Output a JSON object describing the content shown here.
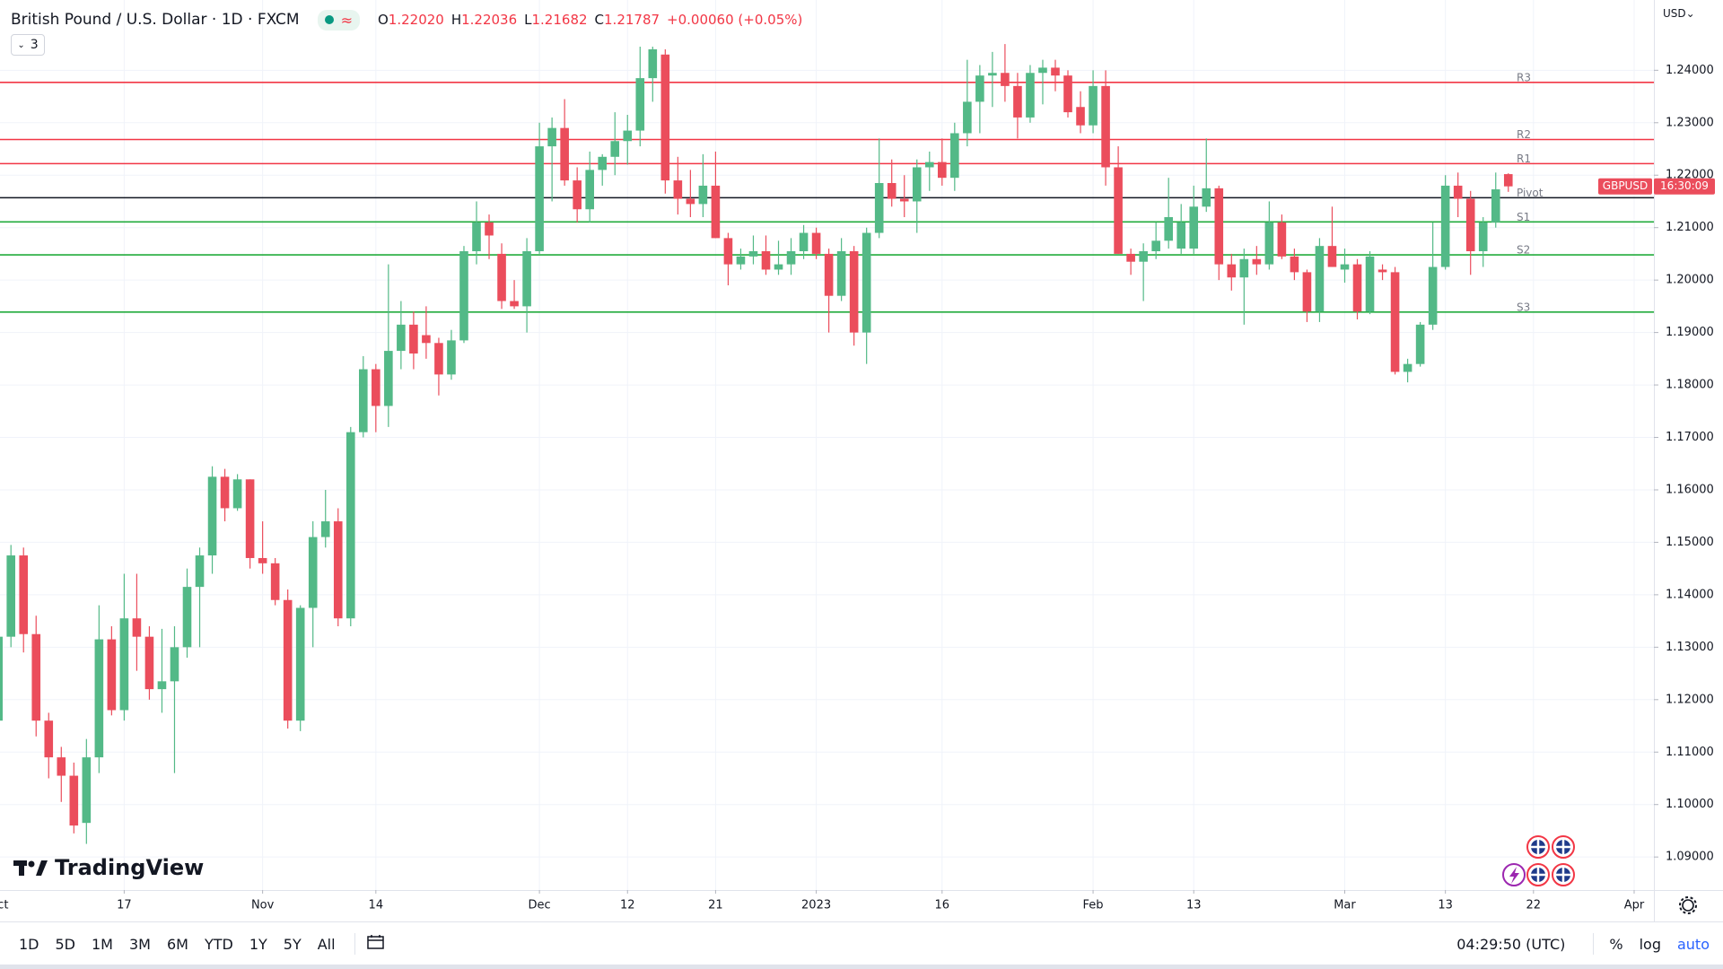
{
  "header": {
    "title": "British Pound / U.S. Dollar · 1D · FXCM",
    "ohlc": [
      {
        "key": "O",
        "value": "1.22020"
      },
      {
        "key": "H",
        "value": "1.22036"
      },
      {
        "key": "L",
        "value": "1.21682"
      },
      {
        "key": "C",
        "value": "1.21787"
      }
    ],
    "change": "+0.00060 (+0.05%)",
    "indicators": "3",
    "currency": "USD⌄",
    "brand": "TradingView"
  },
  "chart_data": {
    "type": "candlestick",
    "up_color": "#53b987",
    "down_color": "#eb4d5c",
    "grid": true,
    "xlim": [
      0.13,
      131.57
    ],
    "xticks": [
      {
        "value": 0,
        "label": "Oct"
      },
      {
        "value": 10,
        "label": "17"
      },
      {
        "value": 21,
        "label": "Nov"
      },
      {
        "value": 30,
        "label": "14"
      },
      {
        "value": 43,
        "label": "Dec"
      },
      {
        "value": 50,
        "label": "12"
      },
      {
        "value": 57,
        "label": "21"
      },
      {
        "value": 65,
        "label": "2023"
      },
      {
        "value": 75,
        "label": "16"
      },
      {
        "value": 87,
        "label": "Feb"
      },
      {
        "value": 95,
        "label": "13"
      },
      {
        "value": 107,
        "label": "Mar"
      },
      {
        "value": 115,
        "label": "13"
      },
      {
        "value": 122,
        "label": "22"
      },
      {
        "value": 130,
        "label": "Apr"
      }
    ],
    "ylim": [
      1.0837,
      1.2534
    ],
    "yticks": [
      {
        "value": 1.09,
        "label": "1.09000"
      },
      {
        "value": 1.1,
        "label": "1.10000"
      },
      {
        "value": 1.11,
        "label": "1.11000"
      },
      {
        "value": 1.12,
        "label": "1.12000"
      },
      {
        "value": 1.13,
        "label": "1.13000"
      },
      {
        "value": 1.14,
        "label": "1.14000"
      },
      {
        "value": 1.15,
        "label": "1.15000"
      },
      {
        "value": 1.16,
        "label": "1.16000"
      },
      {
        "value": 1.17,
        "label": "1.17000"
      },
      {
        "value": 1.18,
        "label": "1.18000"
      },
      {
        "value": 1.19,
        "label": "1.19000"
      },
      {
        "value": 1.2,
        "label": "1.20000"
      },
      {
        "value": 1.21,
        "label": "1.21000"
      },
      {
        "value": 1.22,
        "label": "1.22000"
      },
      {
        "value": 1.23,
        "label": "1.23000"
      },
      {
        "value": 1.24,
        "label": "1.24000"
      }
    ],
    "levels": [
      {
        "label": "R3",
        "value": 1.2377,
        "color": "#f23645"
      },
      {
        "label": "R2",
        "value": 1.2268,
        "color": "#f23645"
      },
      {
        "label": "R1",
        "value": 1.2222,
        "color": "#f23645"
      },
      {
        "label": "Pivot",
        "value": 1.2157,
        "color": "#131722"
      },
      {
        "label": "S1",
        "value": 1.2111,
        "color": "#22ab3c"
      },
      {
        "label": "S2",
        "value": 1.2048,
        "color": "#22ab3c"
      },
      {
        "label": "S3",
        "value": 1.1939,
        "color": "#22ab3c"
      }
    ],
    "countdown": "16:30:09",
    "series": [
      {
        "name": "GBPUSD",
        "open": [
          1.116,
          1.132,
          1.1475,
          1.1325,
          1.116,
          1.109,
          1.1055,
          1.0965,
          1.109,
          1.1315,
          1.118,
          1.1355,
          1.132,
          1.122,
          1.1235,
          1.13,
          1.1415,
          1.1475,
          1.1625,
          1.1565,
          1.162,
          1.147,
          1.146,
          1.139,
          1.116,
          1.1375,
          1.151,
          1.154,
          1.1355,
          1.171,
          1.183,
          1.176,
          1.1865,
          1.1915,
          1.1895,
          1.188,
          1.182,
          1.1885,
          1.2055,
          1.211,
          1.205,
          1.196,
          1.195,
          1.2055,
          1.2255,
          1.229,
          1.219,
          1.2135,
          1.221,
          1.2235,
          1.2265,
          1.2285,
          1.2385,
          1.243,
          1.219,
          1.2155,
          1.2145,
          1.218,
          1.208,
          1.203,
          1.2045,
          1.2055,
          1.202,
          1.203,
          1.2055,
          1.209,
          1.205,
          1.197,
          1.2055,
          1.19,
          1.209,
          1.2185,
          1.2155,
          1.215,
          1.2215,
          1.2225,
          1.2195,
          1.228,
          1.234,
          1.239,
          1.2395,
          1.237,
          1.231,
          1.2395,
          1.2405,
          1.239,
          1.233,
          1.2295,
          1.237,
          1.2215,
          1.205,
          1.2035,
          1.2055,
          1.2075,
          1.206,
          1.206,
          1.214,
          1.2175,
          1.203,
          1.2005,
          1.204,
          1.203,
          1.211,
          1.2045,
          1.2015,
          1.194,
          1.2065,
          1.202,
          1.203,
          1.194,
          1.202,
          1.2015,
          1.1825,
          1.184,
          1.1915,
          1.2025,
          1.218,
          1.2155,
          1.2055,
          1.211,
          1.2202
        ],
        "high": [
          1.137,
          1.1495,
          1.149,
          1.136,
          1.1175,
          1.111,
          1.108,
          1.1125,
          1.138,
          1.134,
          1.144,
          1.144,
          1.134,
          1.1335,
          1.134,
          1.145,
          1.149,
          1.1645,
          1.164,
          1.163,
          1.162,
          1.154,
          1.147,
          1.141,
          1.138,
          1.154,
          1.16,
          1.1565,
          1.172,
          1.1855,
          1.184,
          1.203,
          1.196,
          1.194,
          1.195,
          1.189,
          1.1905,
          1.2065,
          1.215,
          1.2125,
          1.207,
          1.2,
          1.208,
          1.23,
          1.231,
          1.2345,
          1.2215,
          1.2245,
          1.224,
          1.232,
          1.2315,
          1.2445,
          1.2445,
          1.244,
          1.2235,
          1.221,
          1.224,
          1.2245,
          1.209,
          1.206,
          1.2085,
          1.2085,
          1.2075,
          1.208,
          1.2105,
          1.21,
          1.206,
          1.208,
          1.2065,
          1.21,
          1.227,
          1.223,
          1.22,
          1.223,
          1.2245,
          1.227,
          1.23,
          1.242,
          1.241,
          1.2435,
          1.245,
          1.2395,
          1.241,
          1.242,
          1.242,
          1.24,
          1.236,
          1.24,
          1.24,
          1.2255,
          1.206,
          1.207,
          1.211,
          1.2195,
          1.2145,
          1.218,
          1.227,
          1.218,
          1.205,
          1.206,
          1.2065,
          1.215,
          1.2125,
          1.206,
          1.202,
          1.208,
          1.214,
          1.206,
          1.204,
          1.2055,
          1.203,
          1.2025,
          1.185,
          1.192,
          1.211,
          1.22,
          1.2205,
          1.217,
          1.212,
          1.2205,
          1.22036
        ],
        "low": [
          1.11,
          1.13,
          1.129,
          1.113,
          1.105,
          1.1005,
          1.0945,
          1.0925,
          1.106,
          1.117,
          1.116,
          1.1255,
          1.12,
          1.1175,
          1.106,
          1.128,
          1.13,
          1.144,
          1.154,
          1.156,
          1.145,
          1.144,
          1.138,
          1.1145,
          1.114,
          1.13,
          1.149,
          1.134,
          1.134,
          1.17,
          1.171,
          1.172,
          1.183,
          1.183,
          1.185,
          1.178,
          1.181,
          1.188,
          1.203,
          1.204,
          1.1945,
          1.1945,
          1.19,
          1.205,
          1.215,
          1.218,
          1.211,
          1.211,
          1.218,
          1.22,
          1.222,
          1.2255,
          1.234,
          1.2165,
          1.2125,
          1.212,
          1.212,
          1.208,
          1.199,
          1.202,
          1.203,
          1.201,
          1.201,
          1.201,
          1.204,
          1.204,
          1.19,
          1.196,
          1.1875,
          1.184,
          1.208,
          1.214,
          1.212,
          1.209,
          1.217,
          1.218,
          1.217,
          1.2255,
          1.228,
          1.233,
          1.234,
          1.227,
          1.23,
          1.2335,
          1.236,
          1.231,
          1.228,
          1.228,
          1.218,
          1.205,
          1.201,
          1.196,
          1.204,
          1.206,
          1.205,
          1.205,
          1.213,
          1.2,
          1.198,
          1.1915,
          1.201,
          1.202,
          1.204,
          1.2,
          1.192,
          1.192,
          1.2025,
          1.1995,
          1.1925,
          1.1935,
          1.2,
          1.182,
          1.1805,
          1.1835,
          1.1905,
          1.202,
          1.212,
          1.201,
          1.2025,
          1.21,
          1.21682
        ],
        "close": [
          1.132,
          1.1475,
          1.1325,
          1.116,
          1.109,
          1.1055,
          1.096,
          1.109,
          1.1315,
          1.118,
          1.1355,
          1.132,
          1.122,
          1.1235,
          1.13,
          1.1415,
          1.1475,
          1.1625,
          1.1565,
          1.162,
          1.147,
          1.146,
          1.139,
          1.116,
          1.1375,
          1.151,
          1.154,
          1.1355,
          1.171,
          1.183,
          1.176,
          1.1865,
          1.1915,
          1.186,
          1.188,
          1.182,
          1.1885,
          1.2055,
          1.211,
          1.2085,
          1.196,
          1.195,
          1.2055,
          1.2255,
          1.229,
          1.219,
          1.2135,
          1.221,
          1.2235,
          1.2265,
          1.2285,
          1.2385,
          1.244,
          1.219,
          1.2155,
          1.2145,
          1.218,
          1.208,
          1.203,
          1.2045,
          1.2055,
          1.202,
          1.203,
          1.2055,
          1.209,
          1.205,
          1.197,
          1.2055,
          1.19,
          1.209,
          1.2185,
          1.2155,
          1.215,
          1.2215,
          1.2225,
          1.2195,
          1.228,
          1.234,
          1.239,
          1.2395,
          1.237,
          1.231,
          1.2395,
          1.2405,
          1.239,
          1.232,
          1.2295,
          1.237,
          1.2215,
          1.205,
          1.2035,
          1.2055,
          1.2075,
          1.212,
          1.211,
          1.214,
          1.2175,
          1.203,
          1.2005,
          1.204,
          1.203,
          1.211,
          1.2045,
          1.2015,
          1.194,
          1.2065,
          1.2025,
          1.203,
          1.194,
          1.2045,
          1.2015,
          1.1825,
          1.184,
          1.1915,
          1.2025,
          1.218,
          1.2155,
          1.2055,
          1.211,
          1.2173,
          1.21787
        ]
      }
    ]
  },
  "toolbar": {
    "ranges": [
      "1D",
      "5D",
      "1M",
      "3M",
      "6M",
      "YTD",
      "1Y",
      "5Y",
      "All"
    ],
    "clock": "04:29:50 (UTC)",
    "scale": [
      "%",
      "log",
      "auto"
    ]
  }
}
